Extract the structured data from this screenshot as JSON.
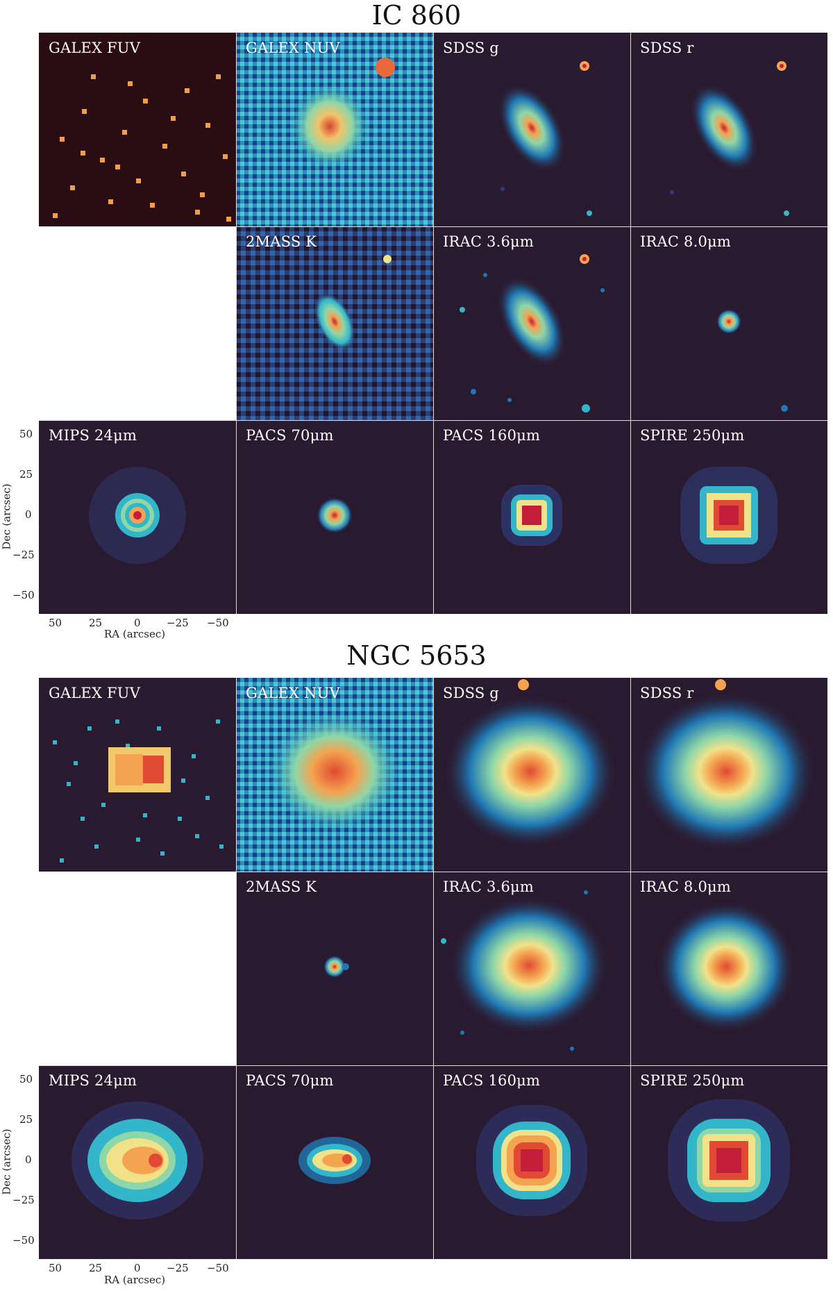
{
  "galaxies": [
    {
      "name": "IC 860",
      "panels": [
        {
          "label": "GALEX FUV"
        },
        {
          "label": "GALEX NUV"
        },
        {
          "label": "SDSS g"
        },
        {
          "label": "SDSS r"
        },
        {
          "label": "2MASS K"
        },
        {
          "label": "IRAC 3.6μm"
        },
        {
          "label": "IRAC 8.0μm"
        },
        {
          "label": "MIPS 24μm"
        },
        {
          "label": "PACS 70μm"
        },
        {
          "label": "PACS 160μm"
        },
        {
          "label": "SPIRE 250μm"
        }
      ],
      "y_ticks": [
        "50",
        "25",
        "0",
        "−25",
        "−50"
      ],
      "x_ticks": [
        "50",
        "25",
        "0",
        "−25",
        "−50"
      ],
      "xlabel": "RA (arcsec)",
      "ylabel": "Dec (arcsec)"
    },
    {
      "name": "NGC 5653",
      "panels": [
        {
          "label": "GALEX FUV"
        },
        {
          "label": "GALEX NUV"
        },
        {
          "label": "SDSS g"
        },
        {
          "label": "SDSS r"
        },
        {
          "label": "2MASS K"
        },
        {
          "label": "IRAC 3.6μm"
        },
        {
          "label": "IRAC 8.0μm"
        },
        {
          "label": "MIPS 24μm"
        },
        {
          "label": "PACS 70μm"
        },
        {
          "label": "PACS 160μm"
        },
        {
          "label": "SPIRE 250μm"
        }
      ],
      "y_ticks": [
        "50",
        "25",
        "0",
        "−25",
        "−50"
      ],
      "x_ticks": [
        "50",
        "25",
        "0",
        "−25",
        "−50"
      ],
      "xlabel": "RA (arcsec)",
      "ylabel": "Dec (arcsec)"
    }
  ],
  "colors": {
    "background": "#2a1a30",
    "colormap": [
      "#2a1a30",
      "#2f3d7a",
      "#1f78b4",
      "#33b6c9",
      "#8fd6a8",
      "#f1e28a",
      "#f4a450",
      "#e04a33",
      "#c41e3a"
    ]
  }
}
